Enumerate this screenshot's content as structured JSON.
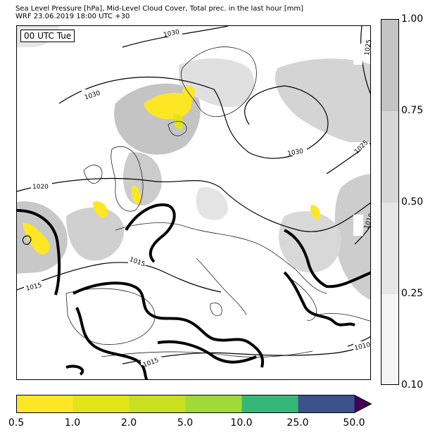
{
  "title": {
    "line1": "Sea Level Pressure [hPa], Mid-Level Cloud Cover, Total prec. in the last hour [mm]",
    "line2": "WRF 23.06.2019 18:00 UTC +30"
  },
  "map": {
    "time_label": "00 UTC Tue",
    "isobar_labels": [
      "1030",
      "1025",
      "1030",
      "1030",
      "1025",
      "1020",
      "1015",
      "1015",
      "1010",
      "1015",
      "1010"
    ]
  },
  "cloud_cover_scale": {
    "ticks": [
      "1.00",
      "0.75",
      "0.50",
      "0.25",
      "0.10"
    ],
    "band_colors": [
      "#c4c4c4",
      "#d6d6d6",
      "#e6e6e6",
      "#f5f5f5"
    ]
  },
  "precip_scale": {
    "ticks": [
      "0.5",
      "1.0",
      "2.0",
      "5.0",
      "10.0",
      "25.0",
      "50.0"
    ],
    "colors": [
      "#fde725",
      "#e3e418",
      "#c8e020",
      "#a0da39",
      "#35b779",
      "#3b528b",
      "#440154"
    ]
  }
}
